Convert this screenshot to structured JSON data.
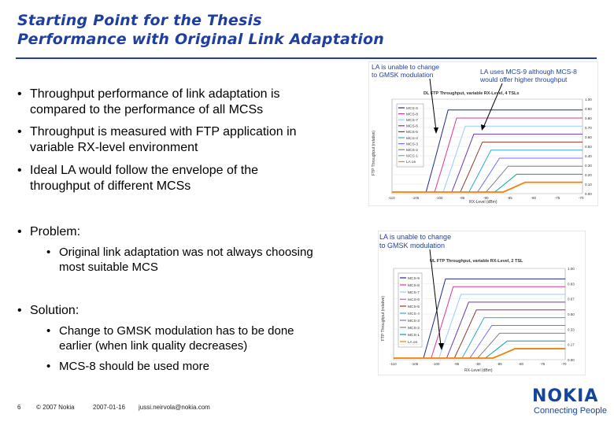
{
  "title": {
    "line1": "Starting Point for the Thesis",
    "line2": "Performance with Original Link Adaptation"
  },
  "bullets": [
    {
      "line1": "Throughput performance of link adaptation is",
      "line2": "compared to the performance of all MCSs"
    },
    {
      "line1": "Throughput is measured with FTP application in",
      "line2": "variable RX-level environment"
    },
    {
      "line1": "Ideal LA would follow the envelope of the",
      "line2": "throughput of different MCSs"
    }
  ],
  "problem": {
    "heading": "Problem:",
    "sub": {
      "line1": "Original link adaptation was not always choosing",
      "line2": "most suitable MCS"
    }
  },
  "solution": {
    "heading": "Solution:",
    "sub1": {
      "line1": "Change to GMSK modulation has to be done",
      "line2": "earlier (when link quality decreases)"
    },
    "sub2": "MCS-8 should be used more"
  },
  "bullet_symbol": "•",
  "footer": {
    "page": "6",
    "copyright": "© 2007 Nokia",
    "date": "2007-01-16",
    "email": "jussi.neirvola@nokia.com"
  },
  "logo": {
    "word": "NOKIA",
    "tagline": "Connecting People"
  },
  "charts": {
    "top": {
      "callout_left": {
        "line1": "LA is unable to change",
        "line2": "to GMSK modulation"
      },
      "callout_right": {
        "line1": "LA uses MCS-9 although MCS-8",
        "line2": "would offer higher throughput"
      },
      "title": "DL FTP Throughput, variable RX-Level, 4 TSLs",
      "ylabel": "FTP Throughput (relative)",
      "xlabel": "RX-Level (dBm)",
      "legend": [
        "MCS-9",
        "MCS-8",
        "MCS-7",
        "MCS-6",
        "MCS-5",
        "MCS-4",
        "MCS-3",
        "MCS-2",
        "MCS-1",
        "LA on"
      ],
      "y_ticks": [
        "1.00",
        "0.90",
        "0.80",
        "0.70",
        "0.60",
        "0.50",
        "0.40",
        "0.30",
        "0.20",
        "0.10",
        "0.00"
      ],
      "x_ticks": [
        "-110",
        "-105",
        "-100",
        "-95",
        "-90",
        "-85",
        "-80",
        "-75",
        "-70"
      ]
    },
    "bottom": {
      "callout_left": {
        "line1": "LA is unable to change",
        "line2": "to GMSK modulation"
      },
      "title": "UL FTP Throughput, variable RX-Level, 2 TSL",
      "ylabel": "FTP Throughput (relative)",
      "xlabel": "RX-Level (dBm)",
      "legend": [
        "MCS-9",
        "MCS-8",
        "MCS-7",
        "MCS-6",
        "MCS-5",
        "MCS-4",
        "MCS-3",
        "MCS-2",
        "MCS-1",
        "LA on"
      ],
      "y_ticks": [
        "1.00",
        "0.83",
        "0.67",
        "0.50",
        "0.33",
        "0.17",
        "0.00"
      ],
      "x_ticks": [
        "-110",
        "-105",
        "-100",
        "-95",
        "-90",
        "-85",
        "-80",
        "-75",
        "-70"
      ]
    }
  },
  "colors": {
    "title": "#1f3fa0",
    "series": [
      "#1c2a8c",
      "#e0348f",
      "#9bc9ff",
      "#6b3ab0",
      "#8a3a2a",
      "#33aacc",
      "#6f6fff",
      "#808080",
      "#00a0a0",
      "#f08000"
    ]
  }
}
